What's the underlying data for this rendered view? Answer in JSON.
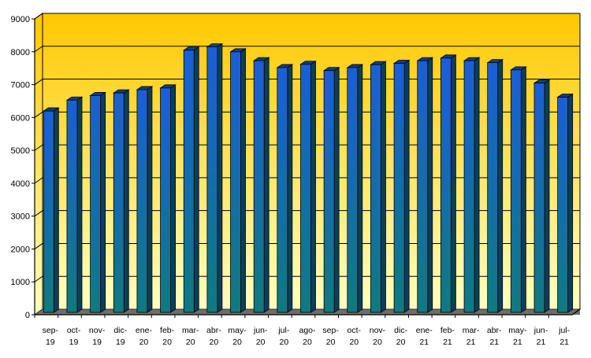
{
  "chart_data": {
    "type": "bar",
    "title": "",
    "xlabel": "",
    "ylabel": "",
    "ylim": [
      0,
      9000
    ],
    "y_ticks": [
      0,
      1000,
      2000,
      3000,
      4000,
      5000,
      6000,
      7000,
      8000,
      9000
    ],
    "grid": true,
    "legend": "none",
    "categories": [
      [
        "sep-",
        "19"
      ],
      [
        "oct-",
        "19"
      ],
      [
        "nov-",
        "19"
      ],
      [
        "dic-",
        "19"
      ],
      [
        "ene-",
        "20"
      ],
      [
        "feb-",
        "20"
      ],
      [
        "mar-",
        "20"
      ],
      [
        "abr-",
        "20"
      ],
      [
        "may-",
        "20"
      ],
      [
        "jun-",
        "20"
      ],
      [
        "jul-",
        "20"
      ],
      [
        "ago-",
        "20"
      ],
      [
        "sep-",
        "20"
      ],
      [
        "oct-",
        "20"
      ],
      [
        "nov-",
        "20"
      ],
      [
        "dic-",
        "20"
      ],
      [
        "ene-",
        "21"
      ],
      [
        "feb-",
        "21"
      ],
      [
        "mar-",
        "21"
      ],
      [
        "abr-",
        "21"
      ],
      [
        "may-",
        "21"
      ],
      [
        "jun-",
        "21"
      ],
      [
        "jul-",
        "21"
      ]
    ],
    "series": [
      {
        "values": [
          6150,
          6480,
          6620,
          6700,
          6800,
          6850,
          8000,
          8100,
          7950,
          7680,
          7470,
          7570,
          7380,
          7470,
          7560,
          7600,
          7680,
          7760,
          7680,
          7620,
          7400,
          7000,
          6570
        ]
      }
    ],
    "colors": {
      "bar_top": "#1a5fd6",
      "bar_bottom": "#0f7a80",
      "bar_side": "#0a3f5a",
      "bar_cap": "#0d3f8f",
      "background_top": "#ffc800",
      "background_bottom": "#ffffc0",
      "floor": "#6d6d6d",
      "axis": "#000000"
    }
  }
}
